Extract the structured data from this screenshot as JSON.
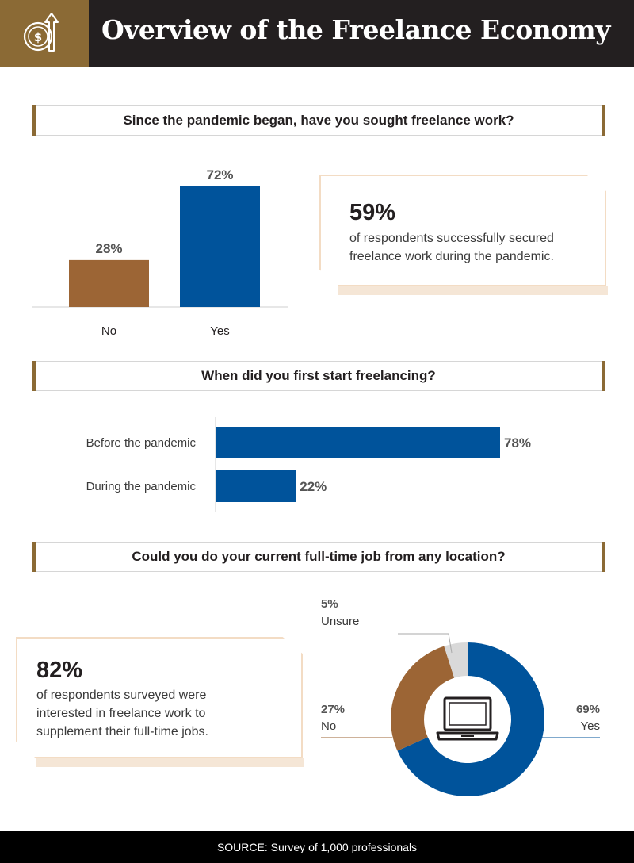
{
  "header": {
    "title": "Overview of the Freelance Economy",
    "icon": "dollar-up-arrow-icon"
  },
  "sections": [
    {
      "question": "Since the pandemic began, have you sought freelance work?"
    },
    {
      "question": "When did you first start freelancing?"
    },
    {
      "question": "Could you do your current full-time job from any location?"
    }
  ],
  "callouts": [
    {
      "stat": "59%",
      "text_line1": "of respondents successfully secured",
      "text_line2": "freelance work during the pandemic."
    },
    {
      "stat": "82%",
      "text_line1": "of respondents surveyed were",
      "text_line2": "interested in freelance work to",
      "text_line3": "supplement their full-time jobs."
    }
  ],
  "chart_data": [
    {
      "type": "bar",
      "title": "Since the pandemic began, have you sought freelance work?",
      "categories": [
        "No",
        "Yes"
      ],
      "values": [
        28,
        72
      ],
      "labels": [
        "28%",
        "72%"
      ],
      "colors": [
        "#9c6535",
        "#00539b"
      ],
      "ylim": [
        0,
        72
      ]
    },
    {
      "type": "bar",
      "orientation": "horizontal",
      "title": "When did you first start freelancing?",
      "categories": [
        "Before the pandemic",
        "During the pandemic"
      ],
      "values": [
        78,
        22
      ],
      "labels": [
        "78%",
        "22%"
      ],
      "color": "#00539b",
      "xlim": [
        0,
        78
      ]
    },
    {
      "type": "pie",
      "variant": "donut",
      "title": "Could you do your current full-time job from any location?",
      "categories": [
        "Yes",
        "No",
        "Unsure"
      ],
      "values": [
        69,
        27,
        5
      ],
      "labels": [
        "69%",
        "27%",
        "5%"
      ],
      "colors": [
        "#00539b",
        "#9c6535",
        "#d9d9d9"
      ],
      "center_icon": "laptop-icon"
    }
  ],
  "footer": {
    "source": "SOURCE: Survey of 1,000 professionals"
  },
  "colors": {
    "gold": "#8b6a35",
    "blue": "#00539b",
    "brown": "#9c6535",
    "dark": "#231f20",
    "callout_border": "#f3dcc4"
  }
}
